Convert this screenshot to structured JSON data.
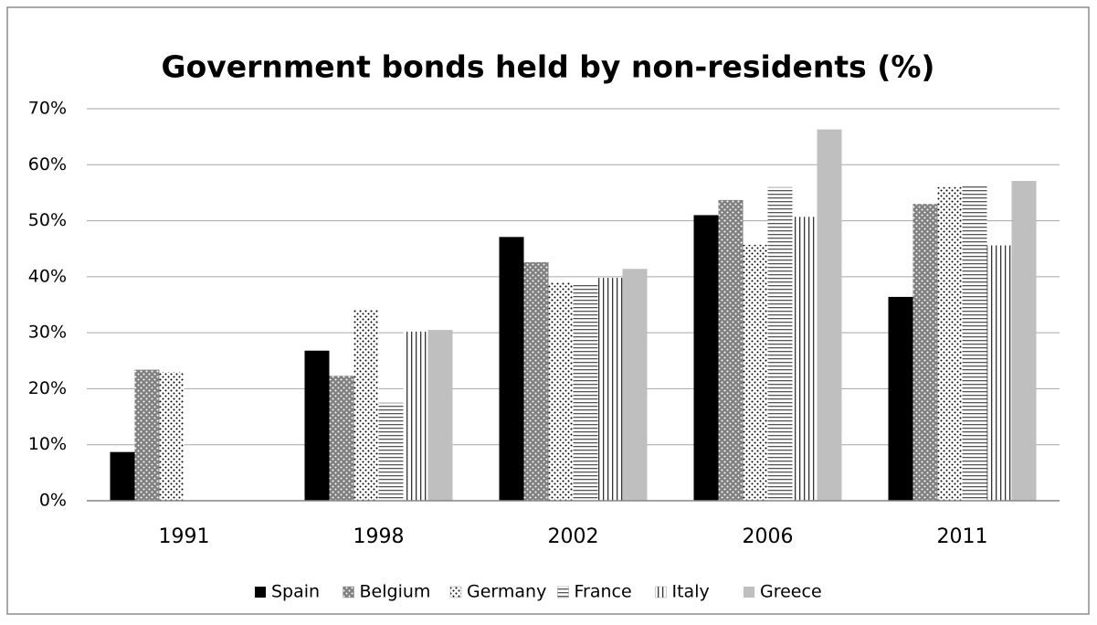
{
  "chart_data": {
    "type": "bar",
    "title": "Government bonds held by non-residents (%)",
    "categories": [
      "1991",
      "1998",
      "2002",
      "2006",
      "2011"
    ],
    "series": [
      {
        "name": "Spain",
        "color": "#000000",
        "pattern": "solid",
        "values": [
          8.7,
          26.8,
          47.1,
          51,
          36.4
        ]
      },
      {
        "name": "Belgium",
        "color": "#808080",
        "pattern": "white-dots",
        "values": [
          23.4,
          22.3,
          42.6,
          53.7,
          53
        ]
      },
      {
        "name": "Germany",
        "color": "#ffffff",
        "pattern": "black-dots",
        "values": [
          23,
          34.1,
          39,
          45.7,
          56
        ]
      },
      {
        "name": "France",
        "color": "#ffffff",
        "pattern": "horizontal",
        "values": [
          null,
          17.5,
          38.7,
          56,
          56.3
        ]
      },
      {
        "name": "Italy",
        "color": "#ffffff",
        "pattern": "vertical",
        "values": [
          null,
          30.2,
          39.8,
          50.7,
          45.6
        ]
      },
      {
        "name": "Greece",
        "color": "#bfbfbf",
        "pattern": "solid",
        "values": [
          null,
          30.5,
          41.4,
          66.3,
          57.1
        ]
      }
    ],
    "ylim": [
      0,
      70
    ],
    "yticks": [
      {
        "value": 0,
        "label": "0%"
      },
      {
        "value": 10,
        "label": "10%"
      },
      {
        "value": 20,
        "label": "20%"
      },
      {
        "value": 30,
        "label": "30%"
      },
      {
        "value": 40,
        "label": "40%"
      },
      {
        "value": 50,
        "label": "50%"
      },
      {
        "value": 60,
        "label": "60%"
      },
      {
        "value": 70,
        "label": "70%"
      }
    ],
    "grid": true,
    "legend": "bottom"
  }
}
